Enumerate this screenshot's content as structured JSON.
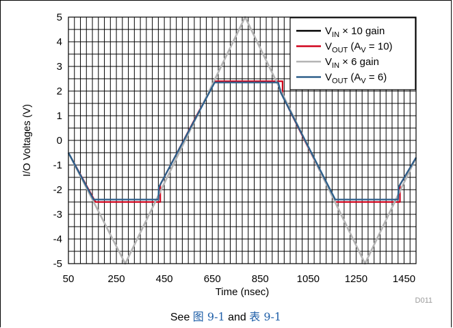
{
  "chart_data": {
    "type": "line",
    "title": "",
    "xlabel": "Time (nsec)",
    "ylabel": "I/O Voltages (V)",
    "xlim": [
      50,
      1500
    ],
    "ylim": [
      -5,
      5
    ],
    "x_ticks": [
      "50",
      "250",
      "450",
      "650",
      "850",
      "1050",
      "1250",
      "1450"
    ],
    "y_ticks": [
      "5",
      "4",
      "3",
      "2",
      "1",
      "0",
      "-1",
      "-2",
      "-3",
      "-4",
      "-5"
    ],
    "grid": true,
    "legend_position": "top-right",
    "series": [
      {
        "name_main": "V",
        "name_sub": "IN",
        "name_rest": " × 10 gain",
        "color": "#000000",
        "x": [
          50,
          287,
          787,
          1287,
          1500
        ],
        "y": [
          -0.5,
          -5,
          5,
          -5,
          -0.7
        ]
      },
      {
        "name_main": "V",
        "name_sub": "OUT",
        "name_rest": " (A",
        "name_sub2": "V",
        "name_rest2": " = 10)",
        "color": "#d0021b",
        "x": [
          50,
          163,
          433,
          433,
          660,
          943,
          943,
          1163,
          1433,
          1433,
          1500
        ],
        "y": [
          -0.5,
          -2.5,
          -2.5,
          -1.8,
          2.4,
          2.4,
          1.8,
          -2.5,
          -2.5,
          -1.8,
          -0.7
        ]
      },
      {
        "name_main": "V",
        "name_sub": "IN",
        "name_rest": " × 6 gain",
        "color": "#b4b4b4",
        "x": [
          50,
          287,
          787,
          1287,
          1500
        ],
        "y": [
          -0.5,
          -5,
          5,
          -5,
          -0.7
        ]
      },
      {
        "name_main": "V",
        "name_sub": "OUT",
        "name_rest": " (A",
        "name_sub2": "V",
        "name_rest2": " = 6)",
        "color": "#2e5f8a",
        "x": [
          50,
          155,
          425,
          427,
          660,
          925,
          935,
          1163,
          1425,
          1427,
          1500
        ],
        "y": [
          -0.5,
          -2.4,
          -2.4,
          -1.9,
          2.35,
          2.35,
          1.95,
          -2.4,
          -2.4,
          -1.9,
          -0.7
        ]
      }
    ],
    "footnote": "D011"
  },
  "caption": {
    "prefix": "See ",
    "figure_ref": "图 9-1",
    "middle": " and ",
    "table_ref": "表 9-1"
  }
}
